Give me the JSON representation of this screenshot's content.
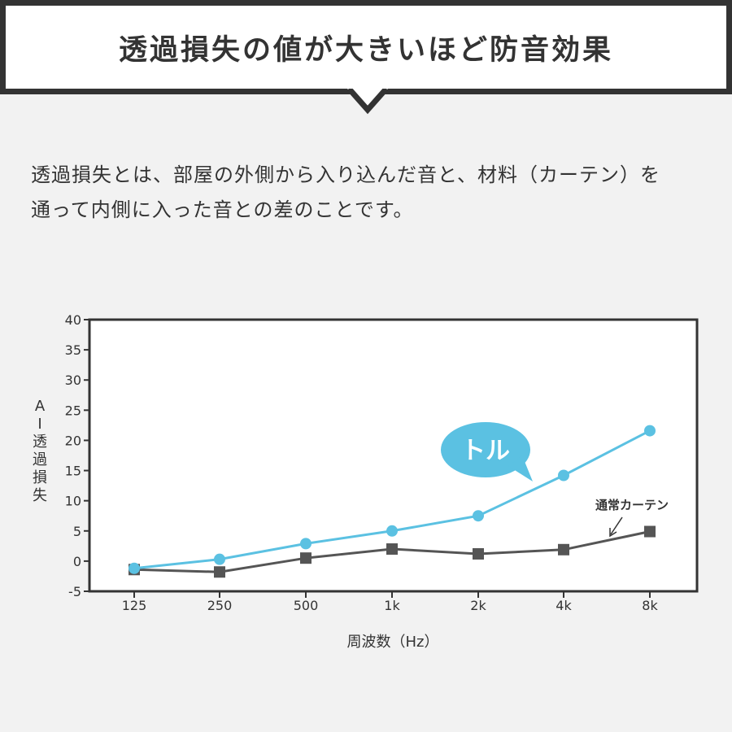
{
  "header": {
    "title": "透過損失の値が大きいほど防音効果"
  },
  "description": {
    "lines": [
      "透過損失とは、部屋の外側から入り込んだ音と、材料（カーテン）を",
      "通って内側に入った音との差のことです。"
    ]
  },
  "chart_data": {
    "type": "line",
    "categories": [
      "125",
      "250",
      "500",
      "1k",
      "2k",
      "4k",
      "8k"
    ],
    "series": [
      {
        "name": "トル",
        "color": "#5bc1e2",
        "marker": "circle",
        "values": [
          -1.2,
          0.3,
          2.9,
          5.0,
          7.5,
          14.2,
          21.6
        ]
      },
      {
        "name": "通常カーテン",
        "color": "#555555",
        "marker": "square",
        "values": [
          -1.4,
          -1.8,
          0.5,
          2.0,
          1.2,
          1.9,
          4.9
        ]
      }
    ],
    "yticks": [
      "40",
      "35",
      "30",
      "25",
      "20",
      "15",
      "10",
      "5",
      "0",
      "-5"
    ],
    "ylim": [
      -5,
      40
    ],
    "xlabel": "周波数（Hz）",
    "ylabel": "AI透過損失",
    "grid": false,
    "annotations": {
      "callout": "トル",
      "arrow_label": "通常カーテン"
    }
  }
}
